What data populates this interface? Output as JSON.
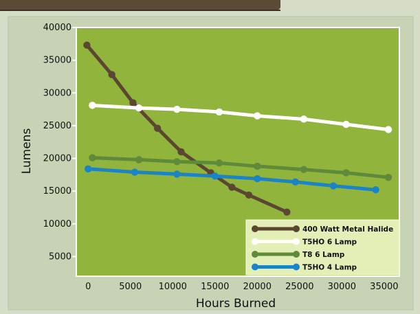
{
  "chart_data": {
    "type": "line",
    "title": "",
    "xlabel": "Hours Burned",
    "ylabel": "Lumens",
    "xlim": [
      -1400,
      36800
    ],
    "ylim": [
      2000,
      40000
    ],
    "xticks": [
      0,
      5000,
      10000,
      15000,
      20000,
      25000,
      30000,
      35000
    ],
    "yticks": [
      5000,
      10000,
      15000,
      20000,
      25000,
      30000,
      35000,
      40000
    ],
    "grid": false,
    "legend_position": "bottom-right",
    "series": [
      {
        "name": "400 Watt Metal Halide",
        "color": "#5b4632",
        "x": [
          -150,
          2800,
          5300,
          8200,
          11000,
          14500,
          17000,
          19000,
          23500
        ],
        "y": [
          37300,
          32800,
          28500,
          24600,
          21000,
          17800,
          15600,
          14400,
          11800
        ]
      },
      {
        "name": "T5HO 6 Lamp",
        "color": "#ffffff",
        "x": [
          500,
          6000,
          10500,
          15500,
          20000,
          25500,
          30500,
          35500
        ],
        "y": [
          28100,
          27700,
          27500,
          27100,
          26500,
          26000,
          25200,
          24400
        ]
      },
      {
        "name": "T8 6 Lamp",
        "color": "#5e8a3a",
        "x": [
          500,
          6000,
          10500,
          15500,
          20000,
          25500,
          30500,
          35500
        ],
        "y": [
          20100,
          19800,
          19500,
          19300,
          18800,
          18300,
          17800,
          17100
        ]
      },
      {
        "name": "T5HO 4 Lamp",
        "color": "#1b84c6",
        "x": [
          0,
          5500,
          10500,
          15000,
          20000,
          24500,
          29000,
          34000
        ],
        "y": [
          18400,
          17900,
          17600,
          17300,
          16900,
          16400,
          15800,
          15200
        ]
      }
    ]
  }
}
